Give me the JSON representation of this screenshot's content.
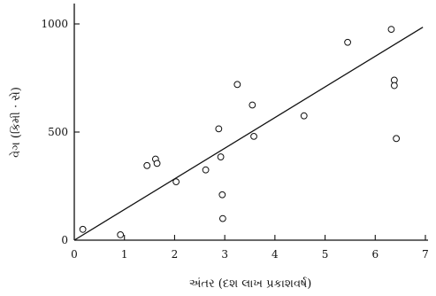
{
  "chart_data": {
    "type": "scatter",
    "title": "",
    "xlabel": "અંતર (દશ લાખ પ્રકાશવર્ષ)",
    "ylabel": "વેગ (કિમી · સે)",
    "xlim": [
      0,
      7
    ],
    "ylim": [
      0,
      1100
    ],
    "x_ticks": [
      0,
      1,
      2,
      3,
      4,
      5,
      6,
      7
    ],
    "y_ticks": [
      0,
      500,
      1000
    ],
    "x_tick_labels": [
      "0",
      "1",
      "2",
      "3",
      "4",
      "5",
      "6",
      "7"
    ],
    "y_tick_labels": [
      "0",
      "500",
      "1000"
    ],
    "grid": false,
    "marker": "open-circle",
    "points": [
      {
        "x": 0.17,
        "y": 50
      },
      {
        "x": 0.92,
        "y": 25
      },
      {
        "x": 1.45,
        "y": 345
      },
      {
        "x": 1.62,
        "y": 375
      },
      {
        "x": 1.65,
        "y": 355
      },
      {
        "x": 2.03,
        "y": 270
      },
      {
        "x": 2.62,
        "y": 325
      },
      {
        "x": 2.88,
        "y": 515
      },
      {
        "x": 2.92,
        "y": 385
      },
      {
        "x": 2.95,
        "y": 210
      },
      {
        "x": 2.96,
        "y": 100
      },
      {
        "x": 3.25,
        "y": 720
      },
      {
        "x": 3.55,
        "y": 625
      },
      {
        "x": 3.58,
        "y": 480
      },
      {
        "x": 4.58,
        "y": 575
      },
      {
        "x": 5.45,
        "y": 915
      },
      {
        "x": 6.32,
        "y": 975
      },
      {
        "x": 6.38,
        "y": 740
      },
      {
        "x": 6.38,
        "y": 715
      },
      {
        "x": 6.42,
        "y": 470
      }
    ],
    "fit_line": {
      "x": [
        0,
        6.95
      ],
      "y": [
        0,
        985
      ]
    }
  }
}
